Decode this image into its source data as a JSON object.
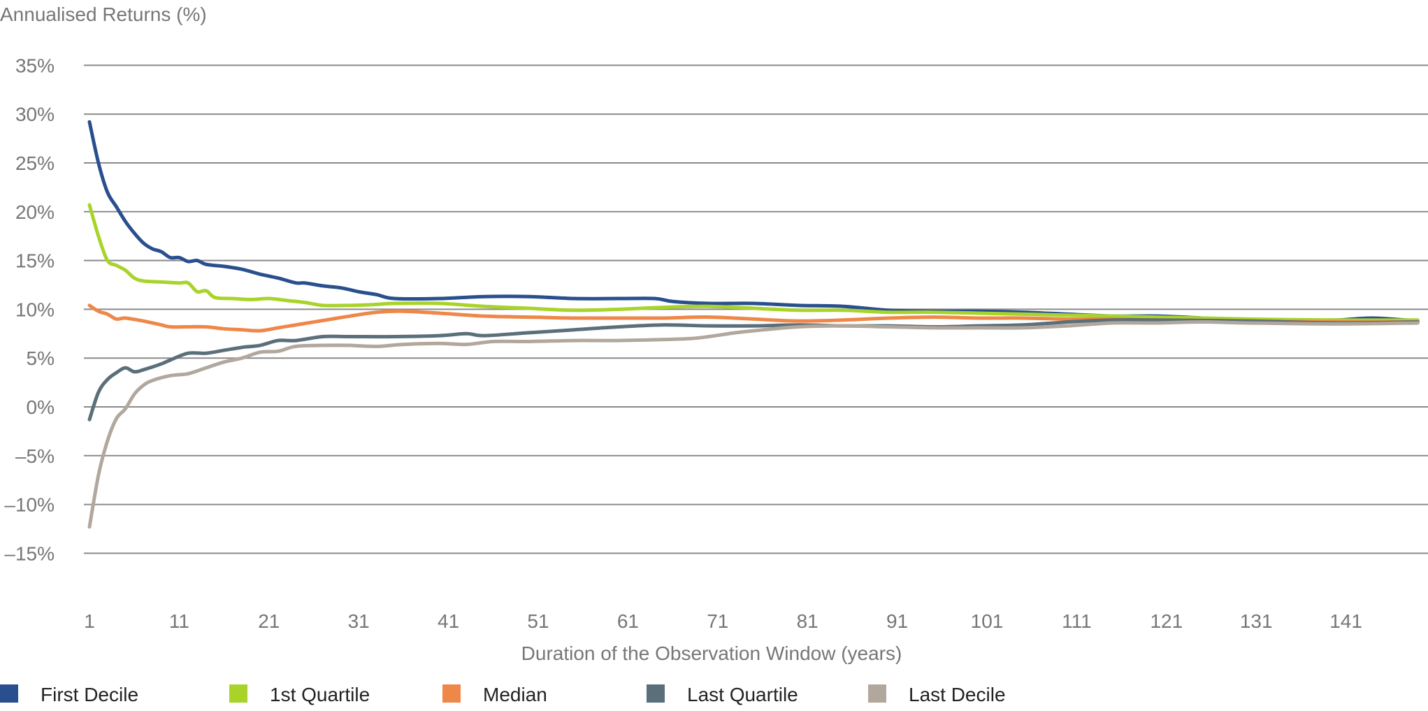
{
  "chart_data": {
    "type": "line",
    "title": "",
    "ylabel": "Annualised Returns (%)",
    "xlabel": "Duration of the Observation Window (years)",
    "xlim": [
      1,
      149
    ],
    "ylim": [
      -15,
      35
    ],
    "x_ticks": [
      1,
      11,
      21,
      31,
      41,
      51,
      61,
      71,
      81,
      91,
      101,
      111,
      121,
      131,
      141
    ],
    "y_ticks": [
      35,
      30,
      25,
      20,
      15,
      10,
      5,
      0,
      -5,
      -10,
      -15
    ],
    "y_tick_labels": [
      "35%",
      "30%",
      "25%",
      "20%",
      "15%",
      "10%",
      "5%",
      "0%",
      "–5%",
      "–10%",
      "–15%"
    ],
    "grid": "horizontal",
    "legend_position": "bottom",
    "series": [
      {
        "name": "First Decile",
        "color": "#2a4f8e",
        "points": [
          [
            1,
            29.2
          ],
          [
            2,
            25
          ],
          [
            3,
            22
          ],
          [
            4,
            20.5
          ],
          [
            5,
            19
          ],
          [
            6,
            17.8
          ],
          [
            7,
            16.8
          ],
          [
            8,
            16.2
          ],
          [
            9,
            15.9
          ],
          [
            10,
            15.3
          ],
          [
            11,
            15.3
          ],
          [
            12,
            14.9
          ],
          [
            13,
            15.0
          ],
          [
            14,
            14.6
          ],
          [
            16,
            14.4
          ],
          [
            18,
            14.1
          ],
          [
            20,
            13.6
          ],
          [
            22,
            13.2
          ],
          [
            24,
            12.7
          ],
          [
            25,
            12.7
          ],
          [
            27,
            12.4
          ],
          [
            29,
            12.2
          ],
          [
            31,
            11.8
          ],
          [
            33,
            11.5
          ],
          [
            35,
            11.1
          ],
          [
            40,
            11.1
          ],
          [
            45,
            11.3
          ],
          [
            50,
            11.3
          ],
          [
            55,
            11.1
          ],
          [
            60,
            11.1
          ],
          [
            64,
            11.1
          ],
          [
            66,
            10.8
          ],
          [
            70,
            10.6
          ],
          [
            75,
            10.6
          ],
          [
            80,
            10.4
          ],
          [
            85,
            10.3
          ],
          [
            90,
            9.9
          ],
          [
            95,
            9.8
          ],
          [
            100,
            9.8
          ],
          [
            105,
            9.7
          ],
          [
            110,
            9.5
          ],
          [
            115,
            9.3
          ],
          [
            120,
            9.3
          ],
          [
            125,
            9.1
          ],
          [
            130,
            8.9
          ],
          [
            135,
            8.9
          ],
          [
            140,
            8.9
          ],
          [
            144,
            9.1
          ],
          [
            149,
            8.8
          ]
        ]
      },
      {
        "name": "1st Quartile",
        "color": "#a8d42a",
        "points": [
          [
            1,
            20.7
          ],
          [
            2,
            17.5
          ],
          [
            3,
            15
          ],
          [
            4,
            14.5
          ],
          [
            5,
            14
          ],
          [
            6,
            13.2
          ],
          [
            7,
            12.9
          ],
          [
            9,
            12.8
          ],
          [
            11,
            12.7
          ],
          [
            12,
            12.7
          ],
          [
            13,
            11.8
          ],
          [
            14,
            11.9
          ],
          [
            15,
            11.2
          ],
          [
            17,
            11.1
          ],
          [
            19,
            11.0
          ],
          [
            21,
            11.1
          ],
          [
            23,
            10.9
          ],
          [
            25,
            10.7
          ],
          [
            27,
            10.4
          ],
          [
            30,
            10.4
          ],
          [
            33,
            10.5
          ],
          [
            35,
            10.6
          ],
          [
            40,
            10.6
          ],
          [
            45,
            10.3
          ],
          [
            50,
            10.1
          ],
          [
            55,
            9.9
          ],
          [
            60,
            10.0
          ],
          [
            65,
            10.2
          ],
          [
            70,
            10.3
          ],
          [
            75,
            10.1
          ],
          [
            80,
            9.9
          ],
          [
            85,
            9.9
          ],
          [
            90,
            9.7
          ],
          [
            95,
            9.7
          ],
          [
            100,
            9.6
          ],
          [
            110,
            9.4
          ],
          [
            120,
            9.2
          ],
          [
            130,
            9.0
          ],
          [
            140,
            8.9
          ],
          [
            149,
            8.9
          ]
        ]
      },
      {
        "name": "Median",
        "color": "#ee8748",
        "points": [
          [
            1,
            10.4
          ],
          [
            2,
            9.8
          ],
          [
            3,
            9.5
          ],
          [
            4,
            9.0
          ],
          [
            5,
            9.1
          ],
          [
            7,
            8.8
          ],
          [
            9,
            8.4
          ],
          [
            10,
            8.2
          ],
          [
            12,
            8.2
          ],
          [
            14,
            8.2
          ],
          [
            16,
            8.0
          ],
          [
            18,
            7.9
          ],
          [
            20,
            7.8
          ],
          [
            22,
            8.1
          ],
          [
            24,
            8.4
          ],
          [
            26,
            8.7
          ],
          [
            28,
            9.0
          ],
          [
            30,
            9.3
          ],
          [
            33,
            9.7
          ],
          [
            36,
            9.8
          ],
          [
            40,
            9.6
          ],
          [
            45,
            9.3
          ],
          [
            50,
            9.2
          ],
          [
            55,
            9.1
          ],
          [
            60,
            9.1
          ],
          [
            65,
            9.1
          ],
          [
            70,
            9.2
          ],
          [
            75,
            9.0
          ],
          [
            80,
            8.8
          ],
          [
            85,
            8.9
          ],
          [
            90,
            9.1
          ],
          [
            95,
            9.2
          ],
          [
            100,
            9.1
          ],
          [
            105,
            9.1
          ],
          [
            110,
            9.0
          ],
          [
            115,
            9.0
          ],
          [
            120,
            8.9
          ],
          [
            130,
            8.8
          ],
          [
            140,
            8.7
          ],
          [
            149,
            8.7
          ]
        ]
      },
      {
        "name": "Last Quartile",
        "color": "#5b6f7b",
        "points": [
          [
            1,
            -1.3
          ],
          [
            2,
            1.5
          ],
          [
            3,
            2.8
          ],
          [
            4,
            3.5
          ],
          [
            5,
            4.0
          ],
          [
            6,
            3.6
          ],
          [
            7,
            3.8
          ],
          [
            9,
            4.4
          ],
          [
            10,
            4.8
          ],
          [
            12,
            5.5
          ],
          [
            14,
            5.5
          ],
          [
            16,
            5.8
          ],
          [
            18,
            6.1
          ],
          [
            20,
            6.3
          ],
          [
            22,
            6.8
          ],
          [
            24,
            6.8
          ],
          [
            27,
            7.2
          ],
          [
            30,
            7.2
          ],
          [
            35,
            7.2
          ],
          [
            40,
            7.3
          ],
          [
            43,
            7.5
          ],
          [
            45,
            7.3
          ],
          [
            50,
            7.6
          ],
          [
            55,
            7.9
          ],
          [
            60,
            8.2
          ],
          [
            65,
            8.4
          ],
          [
            70,
            8.3
          ],
          [
            75,
            8.3
          ],
          [
            80,
            8.4
          ],
          [
            85,
            8.3
          ],
          [
            90,
            8.3
          ],
          [
            95,
            8.2
          ],
          [
            100,
            8.3
          ],
          [
            105,
            8.4
          ],
          [
            110,
            8.7
          ],
          [
            115,
            8.9
          ],
          [
            120,
            8.9
          ],
          [
            130,
            8.8
          ],
          [
            140,
            8.6
          ],
          [
            149,
            8.7
          ]
        ]
      },
      {
        "name": "Last Decile",
        "color": "#b2a79d",
        "points": [
          [
            1,
            -12.3
          ],
          [
            2,
            -7
          ],
          [
            3,
            -3.5
          ],
          [
            4,
            -1.2
          ],
          [
            5,
            -0.2
          ],
          [
            6,
            1.3
          ],
          [
            7,
            2.2
          ],
          [
            8,
            2.7
          ],
          [
            10,
            3.2
          ],
          [
            12,
            3.4
          ],
          [
            14,
            4.0
          ],
          [
            16,
            4.6
          ],
          [
            18,
            5.0
          ],
          [
            20,
            5.6
          ],
          [
            22,
            5.7
          ],
          [
            24,
            6.2
          ],
          [
            27,
            6.3
          ],
          [
            30,
            6.3
          ],
          [
            33,
            6.2
          ],
          [
            36,
            6.4
          ],
          [
            40,
            6.5
          ],
          [
            43,
            6.4
          ],
          [
            46,
            6.7
          ],
          [
            50,
            6.7
          ],
          [
            55,
            6.8
          ],
          [
            60,
            6.8
          ],
          [
            65,
            6.9
          ],
          [
            68,
            7.0
          ],
          [
            70,
            7.2
          ],
          [
            73,
            7.6
          ],
          [
            75,
            7.8
          ],
          [
            80,
            8.2
          ],
          [
            85,
            8.3
          ],
          [
            90,
            8.2
          ],
          [
            95,
            8.1
          ],
          [
            100,
            8.1
          ],
          [
            105,
            8.1
          ],
          [
            110,
            8.3
          ],
          [
            115,
            8.6
          ],
          [
            120,
            8.6
          ],
          [
            125,
            8.7
          ],
          [
            130,
            8.6
          ],
          [
            140,
            8.5
          ],
          [
            149,
            8.6
          ]
        ]
      }
    ]
  }
}
